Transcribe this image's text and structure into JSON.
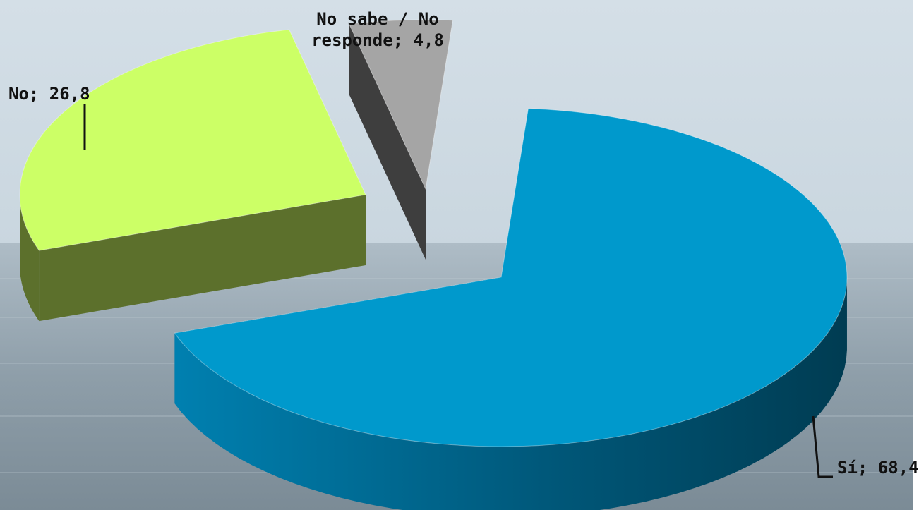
{
  "chart_data": {
    "type": "pie",
    "style": "3d-exploded",
    "slices": [
      {
        "label": "Sí",
        "value": 68.4,
        "display": "Sí; 68,4",
        "color": "#0099CC",
        "side_color": "#00587A"
      },
      {
        "label": "No",
        "value": 26.8,
        "display": "No; 26,8",
        "color": "#CCFF66",
        "side_color": "#5C702C"
      },
      {
        "label": "No sabe / No responde",
        "value": 4.8,
        "display": [
          "No sabe / No",
          "responde; 4,8"
        ],
        "color": "#A5A5A5",
        "side_color": "#3E3E3E"
      }
    ],
    "legend": "none"
  }
}
